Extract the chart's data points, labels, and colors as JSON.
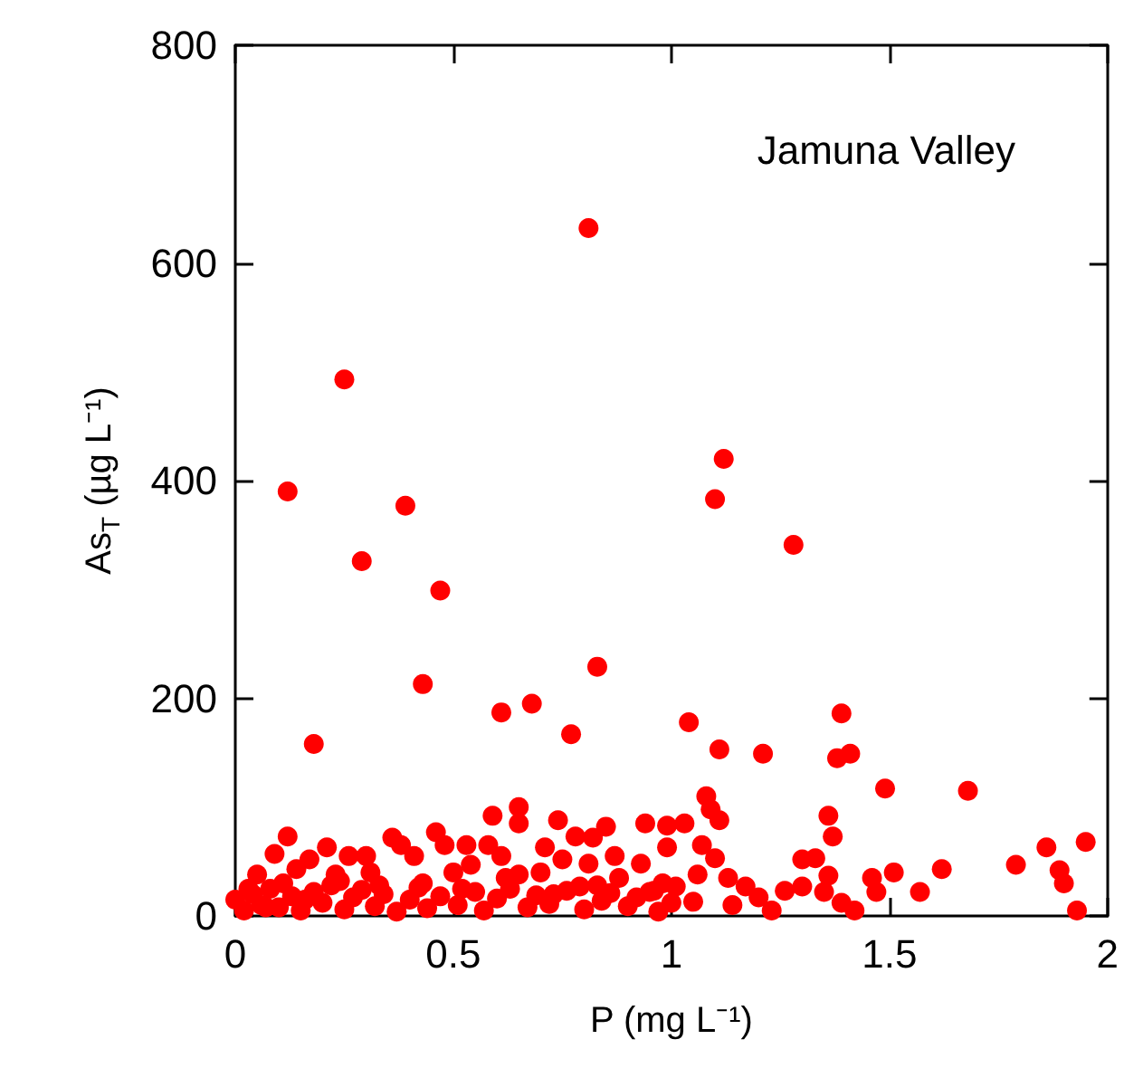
{
  "chart_data": {
    "type": "scatter",
    "xlabel": "P (mg L⁻¹)",
    "ylabel": "As$_{T}$ (µg L⁻¹)",
    "annotations": [
      "Jamuna Valley"
    ],
    "xlim": [
      0,
      2
    ],
    "xticks": [
      0,
      0.5,
      1,
      1.5,
      2
    ],
    "ylim": [
      0,
      800
    ],
    "yticks": [
      0,
      200,
      400,
      600,
      800
    ],
    "grid": false,
    "marker": "circle",
    "series": [
      {
        "color": "#ff0000",
        "x": [
          0.12,
          0.25,
          0.29,
          0.39,
          0.43,
          0.47,
          0.18,
          0.81,
          0.61,
          0.68,
          0.83,
          0.77,
          1.04,
          1.1,
          1.12,
          1.11,
          1.28,
          1.21,
          1.39,
          1.38,
          1.41,
          1.49,
          1.68,
          1.08,
          1.09,
          1.11,
          1.03,
          0.99,
          1.07,
          1.1,
          1.06,
          1.01,
          1.05,
          1.13,
          1.17,
          1.14,
          1.2,
          1.23,
          1.26,
          1.3,
          1.3,
          1.33,
          1.36,
          1.37,
          1.36,
          1.35,
          1.39,
          1.42,
          1.46,
          1.47,
          1.51,
          1.57,
          1.62,
          1.79,
          1.86,
          1.89,
          1.9,
          1.93,
          1.95,
          0.65,
          0.59,
          0.65,
          0.74,
          0.85,
          0.94,
          0.99,
          0.78,
          0.82,
          0.46,
          0.36,
          0.48,
          0.38,
          0.12,
          0.09,
          0.21,
          0.26,
          0.3,
          0.17,
          0.53,
          0.58,
          0.71,
          0.75,
          0.81,
          0.87,
          0.93,
          0.05,
          0.14,
          0.23,
          0.31,
          0.41,
          0.5,
          0.54,
          0.61,
          0.65,
          0.7,
          0.79,
          0.88,
          0.96,
          0.0,
          0.02,
          0.04,
          0.06,
          0.08,
          0.1,
          0.13,
          0.15,
          0.18,
          0.2,
          0.22,
          0.25,
          0.27,
          0.29,
          0.32,
          0.34,
          0.37,
          0.4,
          0.42,
          0.44,
          0.47,
          0.51,
          0.55,
          0.57,
          0.6,
          0.63,
          0.67,
          0.69,
          0.72,
          0.76,
          0.8,
          0.84,
          0.86,
          0.9,
          0.92,
          0.97,
          1.0,
          0.03,
          0.07,
          0.11,
          0.16,
          0.24,
          0.33,
          0.43,
          0.52,
          0.62,
          0.73,
          0.83,
          0.95,
          0.98
        ],
        "values": [
          390,
          493,
          326,
          377,
          213,
          299,
          158,
          632,
          187,
          195,
          229,
          167,
          178,
          383,
          420,
          153,
          341,
          149,
          186,
          145,
          149,
          117,
          115,
          110,
          98,
          88,
          85,
          83,
          65,
          53,
          38,
          27,
          13,
          35,
          27,
          10,
          17,
          5,
          23,
          27,
          52,
          53,
          92,
          73,
          37,
          22,
          12,
          5,
          35,
          22,
          40,
          22,
          43,
          47,
          63,
          42,
          30,
          5,
          68,
          100,
          92,
          85,
          88,
          82,
          85,
          63,
          73,
          72,
          77,
          72,
          65,
          65,
          73,
          57,
          63,
          55,
          55,
          52,
          65,
          65,
          63,
          52,
          48,
          55,
          48,
          38,
          43,
          38,
          40,
          55,
          40,
          47,
          55,
          38,
          40,
          27,
          35,
          23,
          15,
          5,
          20,
          10,
          25,
          8,
          18,
          5,
          22,
          12,
          28,
          6,
          17,
          24,
          9,
          20,
          4,
          15,
          26,
          7,
          18,
          10,
          22,
          5,
          16,
          25,
          8,
          19,
          11,
          23,
          6,
          14,
          21,
          9,
          17,
          4,
          12,
          25,
          8,
          30,
          15,
          32,
          28,
          30,
          25,
          35,
          20,
          28,
          22,
          30
        ]
      }
    ]
  }
}
